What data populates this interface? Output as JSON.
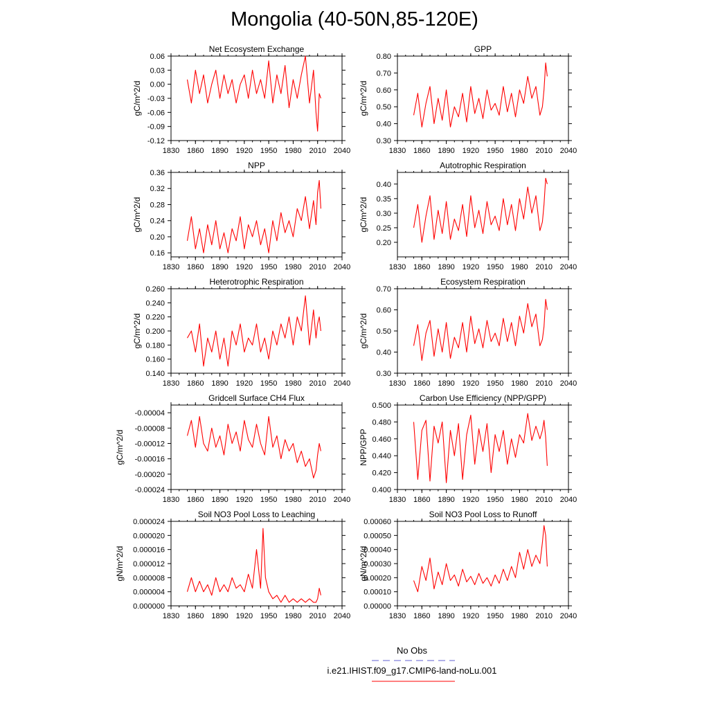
{
  "title": "Mongolia (40-50N,85-120E)",
  "legend": {
    "obs_label": "No Obs",
    "obs_color": "#6060d0",
    "model_label": "i.e21.IHIST.f09_g17.CMIP6-land-noLu.001",
    "model_color": "#ff0000"
  },
  "chart_data": [
    {
      "type": "line",
      "title": "Net Ecosystem Exchange",
      "ylabel": "gC/m^2/d",
      "xlim": [
        1830,
        2040
      ],
      "ylim": [
        -0.12,
        0.06
      ],
      "xticks": [
        "1830",
        "1860",
        "1890",
        "1920",
        "1950",
        "1980",
        "2010",
        "2040"
      ],
      "yticks": [
        "0.06",
        "0.03",
        "0.00",
        "-0.03",
        "-0.06",
        "-0.09",
        "-0.12"
      ],
      "series": [
        {
          "color": "#ff0000",
          "x": [
            1850,
            1855,
            1860,
            1865,
            1870,
            1875,
            1880,
            1885,
            1890,
            1895,
            1900,
            1905,
            1910,
            1915,
            1920,
            1925,
            1930,
            1935,
            1940,
            1945,
            1950,
            1955,
            1960,
            1965,
            1970,
            1975,
            1980,
            1985,
            1990,
            1995,
            2000,
            2005,
            2008,
            2010,
            2012,
            2014
          ],
          "y": [
            0.01,
            -0.04,
            0.03,
            -0.02,
            0.02,
            -0.04,
            0.0,
            0.03,
            -0.03,
            0.02,
            -0.02,
            0.01,
            -0.04,
            0.0,
            0.02,
            -0.03,
            0.03,
            -0.02,
            0.01,
            -0.03,
            0.05,
            -0.04,
            0.02,
            -0.02,
            0.04,
            -0.05,
            0.01,
            -0.03,
            0.02,
            0.06,
            -0.04,
            0.03,
            -0.06,
            -0.1,
            -0.02,
            -0.03
          ]
        }
      ]
    },
    {
      "type": "line",
      "title": "GPP",
      "ylabel": "gC/m^2/d",
      "xlim": [
        1830,
        2040
      ],
      "ylim": [
        0.3,
        0.8
      ],
      "xticks": [
        "1830",
        "1860",
        "1890",
        "1920",
        "1950",
        "1980",
        "2010",
        "2040"
      ],
      "yticks": [
        "0.80",
        "0.70",
        "0.60",
        "0.50",
        "0.40",
        "0.30"
      ],
      "series": [
        {
          "color": "#ff0000",
          "x": [
            1850,
            1855,
            1860,
            1865,
            1870,
            1875,
            1880,
            1885,
            1890,
            1895,
            1900,
            1905,
            1910,
            1915,
            1920,
            1925,
            1930,
            1935,
            1940,
            1945,
            1950,
            1955,
            1960,
            1965,
            1970,
            1975,
            1980,
            1985,
            1990,
            1995,
            2000,
            2005,
            2008,
            2010,
            2012,
            2014
          ],
          "y": [
            0.45,
            0.58,
            0.38,
            0.52,
            0.62,
            0.4,
            0.55,
            0.42,
            0.6,
            0.38,
            0.5,
            0.44,
            0.58,
            0.41,
            0.62,
            0.46,
            0.55,
            0.43,
            0.6,
            0.48,
            0.52,
            0.45,
            0.62,
            0.47,
            0.58,
            0.44,
            0.6,
            0.52,
            0.68,
            0.55,
            0.62,
            0.45,
            0.5,
            0.6,
            0.76,
            0.68
          ]
        }
      ]
    },
    {
      "type": "line",
      "title": "NPP",
      "ylabel": "gC/m^2/d",
      "xlim": [
        1830,
        2040
      ],
      "ylim": [
        0.15,
        0.36
      ],
      "xticks": [
        "1830",
        "1860",
        "1890",
        "1920",
        "1950",
        "1980",
        "2010",
        "2040"
      ],
      "yticks": [
        "0.36",
        "0.32",
        "0.28",
        "0.24",
        "0.20",
        "0.16"
      ],
      "series": [
        {
          "color": "#ff0000",
          "x": [
            1850,
            1855,
            1860,
            1865,
            1870,
            1875,
            1880,
            1885,
            1890,
            1895,
            1900,
            1905,
            1910,
            1915,
            1920,
            1925,
            1930,
            1935,
            1940,
            1945,
            1950,
            1955,
            1960,
            1965,
            1970,
            1975,
            1980,
            1985,
            1990,
            1995,
            2000,
            2005,
            2008,
            2010,
            2012,
            2014
          ],
          "y": [
            0.19,
            0.25,
            0.17,
            0.22,
            0.16,
            0.23,
            0.18,
            0.24,
            0.17,
            0.21,
            0.16,
            0.22,
            0.19,
            0.25,
            0.17,
            0.23,
            0.2,
            0.24,
            0.18,
            0.22,
            0.16,
            0.24,
            0.19,
            0.26,
            0.21,
            0.24,
            0.2,
            0.27,
            0.24,
            0.3,
            0.22,
            0.29,
            0.23,
            0.31,
            0.34,
            0.27
          ]
        }
      ]
    },
    {
      "type": "line",
      "title": "Autotrophic Respiration",
      "ylabel": "gC/m^2/d",
      "xlim": [
        1830,
        2040
      ],
      "ylim": [
        0.15,
        0.44
      ],
      "xticks": [
        "1830",
        "1860",
        "1890",
        "1920",
        "1950",
        "1980",
        "2010",
        "2040"
      ],
      "yticks": [
        "0.40",
        "0.35",
        "0.30",
        "0.25",
        "0.20"
      ],
      "series": [
        {
          "color": "#ff0000",
          "x": [
            1850,
            1855,
            1860,
            1865,
            1870,
            1875,
            1880,
            1885,
            1890,
            1895,
            1900,
            1905,
            1910,
            1915,
            1920,
            1925,
            1930,
            1935,
            1940,
            1945,
            1950,
            1955,
            1960,
            1965,
            1970,
            1975,
            1980,
            1985,
            1990,
            1995,
            2000,
            2005,
            2008,
            2010,
            2012,
            2014
          ],
          "y": [
            0.25,
            0.33,
            0.2,
            0.29,
            0.36,
            0.21,
            0.31,
            0.23,
            0.34,
            0.21,
            0.28,
            0.24,
            0.33,
            0.22,
            0.36,
            0.25,
            0.31,
            0.23,
            0.34,
            0.26,
            0.29,
            0.24,
            0.35,
            0.26,
            0.33,
            0.24,
            0.35,
            0.28,
            0.39,
            0.3,
            0.36,
            0.24,
            0.27,
            0.33,
            0.42,
            0.4
          ]
        }
      ]
    },
    {
      "type": "line",
      "title": "Heterotrophic Respiration",
      "ylabel": "gC/m^2/d",
      "xlim": [
        1830,
        2040
      ],
      "ylim": [
        0.14,
        0.26
      ],
      "xticks": [
        "1830",
        "1860",
        "1890",
        "1920",
        "1950",
        "1980",
        "2010",
        "2040"
      ],
      "yticks": [
        "0.260",
        "0.240",
        "0.220",
        "0.200",
        "0.180",
        "0.160",
        "0.140"
      ],
      "series": [
        {
          "color": "#ff0000",
          "x": [
            1850,
            1855,
            1860,
            1865,
            1870,
            1875,
            1880,
            1885,
            1890,
            1895,
            1900,
            1905,
            1910,
            1915,
            1920,
            1925,
            1930,
            1935,
            1940,
            1945,
            1950,
            1955,
            1960,
            1965,
            1970,
            1975,
            1980,
            1985,
            1990,
            1995,
            2000,
            2005,
            2008,
            2010,
            2012,
            2014
          ],
          "y": [
            0.19,
            0.2,
            0.17,
            0.21,
            0.15,
            0.19,
            0.17,
            0.2,
            0.16,
            0.19,
            0.15,
            0.2,
            0.18,
            0.21,
            0.17,
            0.19,
            0.18,
            0.21,
            0.17,
            0.19,
            0.16,
            0.2,
            0.18,
            0.21,
            0.19,
            0.22,
            0.18,
            0.22,
            0.2,
            0.25,
            0.18,
            0.23,
            0.19,
            0.21,
            0.22,
            0.2
          ]
        }
      ]
    },
    {
      "type": "line",
      "title": "Ecosystem Respiration",
      "ylabel": "gC/m^2/d",
      "xlim": [
        1830,
        2040
      ],
      "ylim": [
        0.3,
        0.7
      ],
      "xticks": [
        "1830",
        "1860",
        "1890",
        "1920",
        "1950",
        "1980",
        "2010",
        "2040"
      ],
      "yticks": [
        "0.70",
        "0.60",
        "0.50",
        "0.40",
        "0.30"
      ],
      "series": [
        {
          "color": "#ff0000",
          "x": [
            1850,
            1855,
            1860,
            1865,
            1870,
            1875,
            1880,
            1885,
            1890,
            1895,
            1900,
            1905,
            1910,
            1915,
            1920,
            1925,
            1930,
            1935,
            1940,
            1945,
            1950,
            1955,
            1960,
            1965,
            1970,
            1975,
            1980,
            1985,
            1990,
            1995,
            2000,
            2005,
            2008,
            2010,
            2012,
            2014
          ],
          "y": [
            0.43,
            0.53,
            0.36,
            0.49,
            0.55,
            0.38,
            0.51,
            0.4,
            0.54,
            0.37,
            0.47,
            0.42,
            0.54,
            0.4,
            0.57,
            0.44,
            0.51,
            0.42,
            0.55,
            0.45,
            0.49,
            0.43,
            0.56,
            0.45,
            0.54,
            0.43,
            0.57,
            0.49,
            0.63,
            0.52,
            0.58,
            0.43,
            0.46,
            0.52,
            0.65,
            0.6
          ]
        }
      ]
    },
    {
      "type": "line",
      "title": "Gridcell Surface CH4 Flux",
      "ylabel": "gC/m^2/d",
      "xlim": [
        1830,
        2040
      ],
      "ylim": [
        -0.00024,
        -2e-05
      ],
      "xticks": [
        "1830",
        "1860",
        "1890",
        "1920",
        "1950",
        "1980",
        "2010",
        "2040"
      ],
      "yticks": [
        "-0.00004",
        "-0.00008",
        "-0.00012",
        "-0.00016",
        "-0.00020",
        "-0.00024"
      ],
      "series": [
        {
          "color": "#ff0000",
          "x": [
            1850,
            1855,
            1860,
            1865,
            1870,
            1875,
            1880,
            1885,
            1890,
            1895,
            1900,
            1905,
            1910,
            1915,
            1920,
            1925,
            1930,
            1935,
            1940,
            1945,
            1950,
            1955,
            1960,
            1965,
            1970,
            1975,
            1980,
            1985,
            1990,
            1995,
            2000,
            2005,
            2008,
            2010,
            2012,
            2014
          ],
          "y": [
            -0.0001,
            -6e-05,
            -0.00013,
            -5e-05,
            -0.00012,
            -0.00014,
            -8e-05,
            -0.00013,
            -0.0001,
            -0.00015,
            -7e-05,
            -0.00012,
            -9e-05,
            -0.00014,
            -6e-05,
            -0.00011,
            -0.00013,
            -7e-05,
            -0.00012,
            -0.00015,
            -5e-05,
            -0.00013,
            -0.0001,
            -0.00016,
            -0.00011,
            -0.00014,
            -0.00012,
            -0.00017,
            -0.00014,
            -0.00018,
            -0.00016,
            -0.00021,
            -0.00019,
            -0.00015,
            -0.00012,
            -0.00014
          ]
        }
      ]
    },
    {
      "type": "line",
      "title": "Carbon Use Efficiency (NPP/GPP)",
      "ylabel": "NPP/GPP",
      "xlim": [
        1830,
        2040
      ],
      "ylim": [
        0.4,
        0.5
      ],
      "xticks": [
        "1830",
        "1860",
        "1890",
        "1920",
        "1950",
        "1980",
        "2010",
        "2040"
      ],
      "yticks": [
        "0.500",
        "0.480",
        "0.460",
        "0.440",
        "0.420",
        "0.400"
      ],
      "series": [
        {
          "color": "#ff0000",
          "x": [
            1850,
            1855,
            1860,
            1865,
            1870,
            1875,
            1880,
            1885,
            1890,
            1895,
            1900,
            1905,
            1910,
            1915,
            1920,
            1925,
            1930,
            1935,
            1940,
            1945,
            1950,
            1955,
            1960,
            1965,
            1970,
            1975,
            1980,
            1985,
            1990,
            1995,
            2000,
            2005,
            2008,
            2010,
            2012,
            2014
          ],
          "y": [
            0.48,
            0.412,
            0.47,
            0.482,
            0.41,
            0.475,
            0.455,
            0.48,
            0.408,
            0.47,
            0.44,
            0.478,
            0.412,
            0.465,
            0.488,
            0.43,
            0.472,
            0.445,
            0.478,
            0.42,
            0.465,
            0.445,
            0.47,
            0.43,
            0.46,
            0.438,
            0.465,
            0.455,
            0.49,
            0.458,
            0.475,
            0.46,
            0.47,
            0.482,
            0.462,
            0.428
          ]
        }
      ]
    },
    {
      "type": "line",
      "title": "Soil NO3 Pool Loss to Leaching",
      "ylabel": "gN/m^2/d",
      "xlim": [
        1830,
        2040
      ],
      "ylim": [
        0.0,
        2.4e-05
      ],
      "xticks": [
        "1830",
        "1860",
        "1890",
        "1920",
        "1950",
        "1980",
        "2010",
        "2040"
      ],
      "yticks": [
        "0.000024",
        "0.000020",
        "0.000016",
        "0.000012",
        "0.000008",
        "0.000004",
        "0.000000"
      ],
      "series": [
        {
          "color": "#ff0000",
          "x": [
            1850,
            1855,
            1860,
            1865,
            1870,
            1875,
            1880,
            1885,
            1890,
            1895,
            1900,
            1905,
            1910,
            1915,
            1920,
            1925,
            1930,
            1935,
            1940,
            1943,
            1946,
            1950,
            1955,
            1960,
            1965,
            1970,
            1975,
            1980,
            1985,
            1990,
            1995,
            2000,
            2005,
            2008,
            2010,
            2012,
            2014
          ],
          "y": [
            4e-06,
            8e-06,
            4e-06,
            7e-06,
            4e-06,
            6e-06,
            3e-06,
            8e-06,
            4e-06,
            6e-06,
            4e-06,
            8e-06,
            5e-06,
            6e-06,
            4e-06,
            9e-06,
            5e-06,
            1.6e-05,
            5e-06,
            2.2e-05,
            8e-06,
            4e-06,
            2e-06,
            3e-06,
            1e-06,
            3e-06,
            1e-06,
            2e-06,
            1e-06,
            2e-06,
            1e-06,
            2e-06,
            1e-06,
            1e-06,
            2e-06,
            5e-06,
            3e-06
          ]
        }
      ]
    },
    {
      "type": "line",
      "title": "Soil NO3 Pool Loss to Runoff",
      "ylabel": "gN/m^2/d",
      "xlim": [
        1830,
        2040
      ],
      "ylim": [
        0.0,
        0.0006
      ],
      "xticks": [
        "1830",
        "1860",
        "1890",
        "1920",
        "1950",
        "1980",
        "2010",
        "2040"
      ],
      "yticks": [
        "0.00060",
        "0.00050",
        "0.00040",
        "0.00030",
        "0.00020",
        "0.00010",
        "0.00000"
      ],
      "series": [
        {
          "color": "#ff0000",
          "x": [
            1850,
            1855,
            1860,
            1865,
            1870,
            1875,
            1880,
            1885,
            1890,
            1895,
            1900,
            1905,
            1910,
            1915,
            1920,
            1925,
            1930,
            1935,
            1940,
            1945,
            1950,
            1955,
            1960,
            1965,
            1970,
            1975,
            1980,
            1985,
            1990,
            1995,
            2000,
            2005,
            2008,
            2010,
            2012,
            2014
          ],
          "y": [
            0.00018,
            0.0001,
            0.00028,
            0.00018,
            0.00034,
            0.00012,
            0.00024,
            0.00015,
            0.0003,
            0.00018,
            0.00022,
            0.00014,
            0.00026,
            0.00017,
            0.00021,
            0.00015,
            0.00023,
            0.00016,
            0.0002,
            0.00014,
            0.00022,
            0.00016,
            0.00026,
            0.00018,
            0.00028,
            0.0002,
            0.00038,
            0.00026,
            0.0004,
            0.00028,
            0.00036,
            0.0003,
            0.00045,
            0.00057,
            0.0005,
            0.00028
          ]
        }
      ]
    }
  ]
}
